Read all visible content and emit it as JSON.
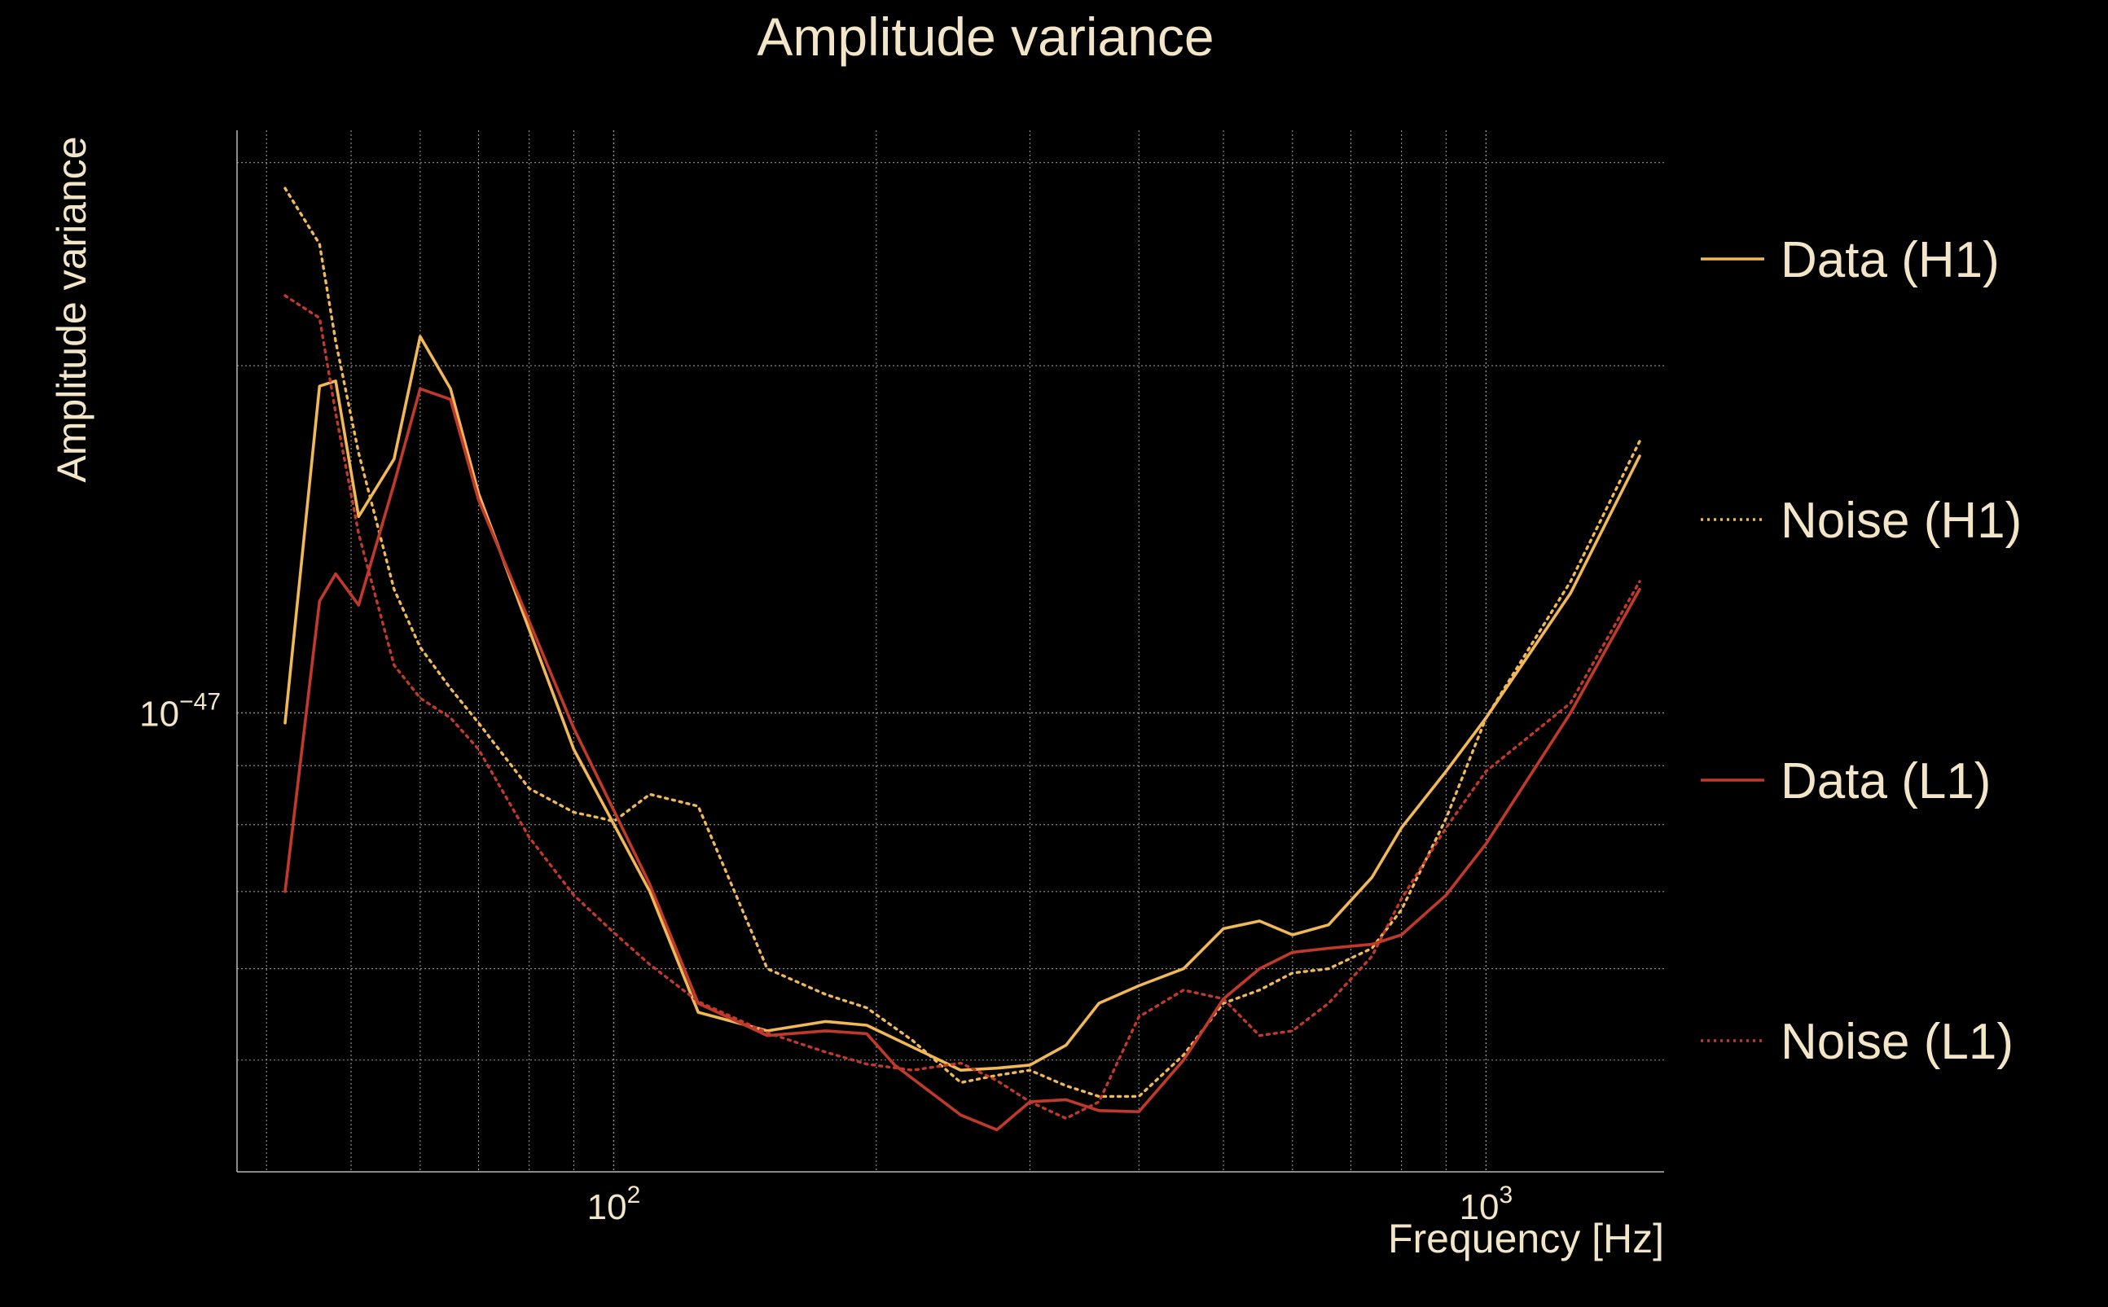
{
  "chart_data": {
    "type": "line",
    "title": "Amplitude variance",
    "xlabel": "Frequency [Hz]",
    "ylabel": "Amplitude variance",
    "xscale": "log",
    "yscale": "log",
    "xlim": [
      37,
      1600
    ],
    "ylim": [
      4e-48,
      3.2e-47
    ],
    "x_ticks": [
      {
        "value": 100,
        "base": "10",
        "exp": "2"
      },
      {
        "value": 1000,
        "base": "10",
        "exp": "3"
      }
    ],
    "y_ticks": [
      {
        "value": 1e-47,
        "base": "10",
        "exp": "−47"
      }
    ],
    "grid": true,
    "legend_position": "right",
    "colors": {
      "background": "#000000",
      "text": "#f3e6c8",
      "grid": "#b8b8b8",
      "h1": "#f0b856",
      "l1": "#c0392b"
    },
    "series": [
      {
        "name": "Data (H1)",
        "style": "solid",
        "color": "#f0b856",
        "x": [
          42,
          46,
          48,
          51,
          56,
          60,
          65,
          70,
          90,
          110,
          125,
          150,
          175,
          195,
          250,
          275,
          300,
          330,
          360,
          400,
          450,
          500,
          550,
          600,
          660,
          740,
          800,
          900,
          1000,
          1250,
          1500
        ],
        "y": [
          9.8e-48,
          1.92e-47,
          1.94e-47,
          1.48e-47,
          1.66e-47,
          2.12e-47,
          1.91e-47,
          1.55e-47,
          9.3e-48,
          7e-48,
          5.5e-48,
          5.3e-48,
          5.4e-48,
          5.36e-48,
          4.9e-48,
          4.92e-48,
          4.95e-48,
          5.15e-48,
          5.6e-48,
          5.8e-48,
          6e-48,
          6.5e-48,
          6.6e-48,
          6.42e-48,
          6.55e-48,
          7.2e-48,
          7.95e-48,
          8.9e-48,
          9.9e-48,
          1.27e-47,
          1.67e-47
        ]
      },
      {
        "name": "Noise (H1)",
        "style": "dotted",
        "color": "#f0b856",
        "x": [
          42,
          46,
          48,
          51,
          56,
          60,
          65,
          70,
          80,
          90,
          97,
          100,
          110,
          125,
          150,
          175,
          195,
          220,
          250,
          275,
          300,
          330,
          360,
          400,
          450,
          500,
          550,
          600,
          660,
          740,
          800,
          900,
          1000,
          1250,
          1500
        ],
        "y": [
          2.85e-47,
          2.55e-47,
          2.1e-47,
          1.68e-47,
          1.28e-47,
          1.14e-47,
          1.05e-47,
          9.8e-48,
          8.6e-48,
          8.2e-48,
          8.1e-48,
          8.05e-48,
          8.5e-48,
          8.3e-48,
          6e-48,
          5.7e-48,
          5.55e-48,
          5.2e-48,
          4.78e-48,
          4.85e-48,
          4.9e-48,
          4.75e-48,
          4.65e-48,
          4.65e-48,
          5.05e-48,
          5.6e-48,
          5.75e-48,
          5.95e-48,
          6e-48,
          6.25e-48,
          6.75e-48,
          8.1e-48,
          9.9e-48,
          1.3e-47,
          1.72e-47
        ]
      },
      {
        "name": "Data (L1)",
        "style": "solid",
        "color": "#c0392b",
        "x": [
          42,
          46,
          48,
          51,
          56,
          60,
          65,
          70,
          90,
          110,
          125,
          150,
          175,
          195,
          210,
          250,
          275,
          300,
          330,
          360,
          400,
          450,
          500,
          550,
          600,
          660,
          740,
          800,
          900,
          1000,
          1250,
          1500
        ],
        "y": [
          7e-48,
          1.25e-47,
          1.32e-47,
          1.24e-47,
          1.58e-47,
          1.91e-47,
          1.87e-47,
          1.53e-47,
          9.7e-48,
          7.1e-48,
          5.6e-48,
          5.25e-48,
          5.3e-48,
          5.27e-48,
          4.95e-48,
          4.48e-48,
          4.35e-48,
          4.6e-48,
          4.62e-48,
          4.52e-48,
          4.51e-48,
          5e-48,
          5.65e-48,
          6e-48,
          6.2e-48,
          6.25e-48,
          6.3e-48,
          6.42e-48,
          6.95e-48,
          7.7e-48,
          1e-47,
          1.28e-47
        ]
      },
      {
        "name": "Noise (L1)",
        "style": "dotted",
        "color": "#c0392b",
        "x": [
          42,
          46,
          48,
          51,
          56,
          60,
          65,
          70,
          80,
          90,
          100,
          110,
          125,
          150,
          175,
          195,
          220,
          250,
          275,
          300,
          330,
          360,
          400,
          450,
          500,
          550,
          600,
          660,
          740,
          800,
          900,
          1000,
          1250,
          1500
        ],
        "y": [
          2.3e-47,
          2.2e-47,
          1.82e-47,
          1.43e-47,
          1.1e-47,
          1.03e-47,
          9.9e-48,
          9.3e-48,
          7.8e-48,
          6.95e-48,
          6.45e-48,
          6.05e-48,
          5.62e-48,
          5.28e-48,
          5.08e-48,
          4.96e-48,
          4.9e-48,
          4.97e-48,
          4.8e-48,
          4.6e-48,
          4.45e-48,
          4.6e-48,
          5.45e-48,
          5.75e-48,
          5.65e-48,
          5.25e-48,
          5.3e-48,
          5.6e-48,
          6.15e-48,
          6.9e-48,
          7.95e-48,
          8.9e-48,
          1.02e-47,
          1.3e-47
        ]
      }
    ]
  }
}
